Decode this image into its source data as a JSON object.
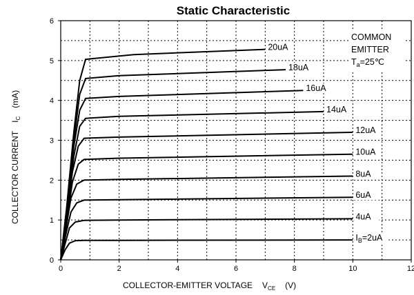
{
  "chart_data": {
    "type": "line",
    "title": "Static Characteristic",
    "xlabel": "COLLECTOR-EMITTER VOLTAGE",
    "xlabel_symbol": "V",
    "xlabel_sub": "CE",
    "xlabel_unit": "(V)",
    "ylabel": "COLLECTOR CURRENT",
    "ylabel_symbol": "I",
    "ylabel_sub": "C",
    "ylabel_unit": "(mA)",
    "xlim": [
      0,
      12
    ],
    "ylim": [
      0,
      6
    ],
    "xticks": [
      "0",
      "2",
      "4",
      "6",
      "8",
      "10",
      "12"
    ],
    "yticks": [
      "0",
      "1",
      "2",
      "3",
      "4",
      "5",
      "6"
    ],
    "grid": true,
    "annotation": {
      "line1": "COMMON",
      "line2": "EMITTER",
      "temp_symbol": "T",
      "temp_sub": "a",
      "temp_value": "=25℃"
    },
    "series": [
      {
        "name": "2uA",
        "label_symbol": "I",
        "label_sub": "B",
        "label_value": "=2uA",
        "points": [
          [
            0,
            0
          ],
          [
            0.15,
            0.25
          ],
          [
            0.3,
            0.42
          ],
          [
            0.5,
            0.48
          ],
          [
            0.8,
            0.49
          ],
          [
            2,
            0.49
          ],
          [
            10,
            0.5
          ]
        ]
      },
      {
        "name": "4uA",
        "points": [
          [
            0,
            0
          ],
          [
            0.15,
            0.4
          ],
          [
            0.3,
            0.8
          ],
          [
            0.5,
            0.95
          ],
          [
            0.8,
            0.99
          ],
          [
            2,
            1.0
          ],
          [
            10,
            1.03
          ]
        ]
      },
      {
        "name": "6uA",
        "points": [
          [
            0,
            0
          ],
          [
            0.15,
            0.55
          ],
          [
            0.35,
            1.2
          ],
          [
            0.55,
            1.43
          ],
          [
            0.8,
            1.5
          ],
          [
            2,
            1.51
          ],
          [
            10,
            1.57
          ]
        ]
      },
      {
        "name": "8uA",
        "points": [
          [
            0,
            0
          ],
          [
            0.15,
            0.65
          ],
          [
            0.35,
            1.55
          ],
          [
            0.55,
            1.9
          ],
          [
            0.8,
            2.0
          ],
          [
            2,
            2.02
          ],
          [
            10,
            2.1
          ]
        ]
      },
      {
        "name": "10uA",
        "points": [
          [
            0,
            0
          ],
          [
            0.2,
            0.95
          ],
          [
            0.4,
            1.95
          ],
          [
            0.6,
            2.4
          ],
          [
            0.8,
            2.52
          ],
          [
            2,
            2.55
          ],
          [
            10,
            2.65
          ]
        ]
      },
      {
        "name": "12uA",
        "points": [
          [
            0,
            0
          ],
          [
            0.2,
            1.05
          ],
          [
            0.4,
            2.2
          ],
          [
            0.6,
            2.85
          ],
          [
            0.8,
            3.05
          ],
          [
            2,
            3.08
          ],
          [
            10,
            3.2
          ]
        ]
      },
      {
        "name": "14uA",
        "points": [
          [
            0,
            0
          ],
          [
            0.2,
            1.15
          ],
          [
            0.45,
            2.6
          ],
          [
            0.65,
            3.35
          ],
          [
            0.85,
            3.55
          ],
          [
            2,
            3.6
          ],
          [
            9,
            3.72
          ]
        ]
      },
      {
        "name": "16uA",
        "points": [
          [
            0,
            0
          ],
          [
            0.2,
            1.2
          ],
          [
            0.45,
            2.85
          ],
          [
            0.65,
            3.75
          ],
          [
            0.85,
            4.05
          ],
          [
            2,
            4.1
          ],
          [
            8.3,
            4.25
          ]
        ]
      },
      {
        "name": "18uA",
        "points": [
          [
            0,
            0
          ],
          [
            0.2,
            1.25
          ],
          [
            0.45,
            3.0
          ],
          [
            0.65,
            4.15
          ],
          [
            0.85,
            4.55
          ],
          [
            2,
            4.62
          ],
          [
            7.7,
            4.77
          ]
        ]
      },
      {
        "name": "20uA",
        "points": [
          [
            0,
            0
          ],
          [
            0.2,
            1.3
          ],
          [
            0.45,
            3.2
          ],
          [
            0.65,
            4.5
          ],
          [
            0.85,
            5.03
          ],
          [
            2.5,
            5.15
          ],
          [
            7.0,
            5.28
          ]
        ]
      }
    ]
  }
}
